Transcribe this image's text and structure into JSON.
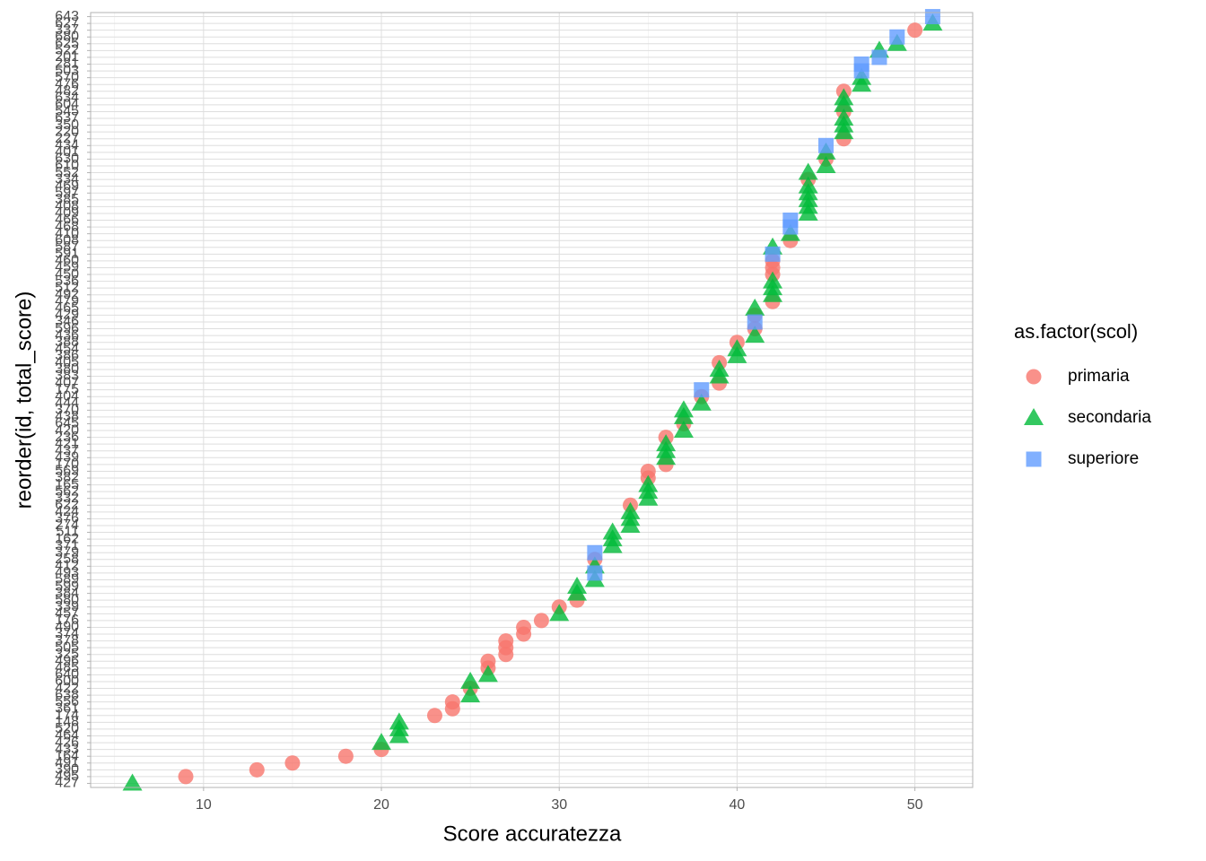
{
  "chart_data": {
    "type": "scatter",
    "x_label": "Score accuratezza",
    "y_label": "reorder(id, total_score)",
    "legend_title": "as.factor(scol)",
    "legend_position": "right",
    "grid": true,
    "xlim": [
      3.65,
      53.25
    ],
    "xticks": [
      10,
      20,
      30,
      40,
      50
    ],
    "categories": [
      "427",
      "495",
      "390",
      "491",
      "164",
      "433",
      "426",
      "464",
      "520",
      "148",
      "174",
      "361",
      "556",
      "638",
      "422",
      "600",
      "640",
      "485",
      "496",
      "325",
      "505",
      "378",
      "374",
      "490",
      "176",
      "457",
      "339",
      "580",
      "384",
      "599",
      "589",
      "493",
      "412",
      "258",
      "379",
      "371",
      "162",
      "511",
      "274",
      "376",
      "424",
      "622",
      "332",
      "562",
      "165",
      "382",
      "569",
      "170",
      "439",
      "437",
      "421",
      "236",
      "420",
      "645",
      "438",
      "370",
      "444",
      "404",
      "175",
      "407",
      "383",
      "380",
      "405",
      "386",
      "454",
      "388",
      "436",
      "596",
      "346",
      "429",
      "465",
      "479",
      "492",
      "512",
      "536",
      "450",
      "459",
      "460",
      "591",
      "587",
      "608",
      "410",
      "468",
      "466",
      "409",
      "408",
      "385",
      "597",
      "469",
      "334",
      "552",
      "610",
      "630",
      "401",
      "434",
      "227",
      "220",
      "350",
      "637",
      "545",
      "604",
      "634",
      "482",
      "476",
      "570",
      "503",
      "281",
      "201",
      "522",
      "625",
      "680",
      "337",
      "627",
      "643"
    ],
    "series": [
      {
        "name": "primaria",
        "color": "#F8766D",
        "shape": "circle",
        "values": [
          null,
          9,
          13,
          15,
          18,
          20,
          null,
          null,
          null,
          null,
          23,
          24,
          24,
          null,
          25,
          null,
          null,
          26,
          26,
          27,
          27,
          27,
          28,
          28,
          29,
          null,
          30,
          31,
          null,
          null,
          null,
          null,
          null,
          32,
          null,
          null,
          null,
          null,
          null,
          null,
          null,
          34,
          null,
          null,
          null,
          35,
          35,
          36,
          null,
          null,
          null,
          36,
          null,
          37,
          null,
          null,
          null,
          38,
          null,
          39,
          null,
          null,
          39,
          null,
          null,
          40,
          null,
          41,
          null,
          41,
          null,
          42,
          null,
          null,
          null,
          42,
          42,
          42,
          null,
          null,
          43,
          null,
          null,
          null,
          null,
          null,
          null,
          null,
          null,
          44,
          null,
          null,
          45,
          null,
          null,
          46,
          null,
          null,
          null,
          46,
          null,
          null,
          46,
          null,
          null,
          null,
          null,
          null,
          null,
          null,
          null,
          50,
          null,
          null
        ]
      },
      {
        "name": "secondaria",
        "color": "#00BA38",
        "shape": "triangle",
        "values": [
          6,
          null,
          null,
          null,
          null,
          null,
          20,
          21,
          21,
          21,
          null,
          null,
          null,
          25,
          null,
          25,
          26,
          null,
          null,
          null,
          null,
          null,
          null,
          null,
          null,
          30,
          null,
          null,
          31,
          31,
          32,
          null,
          32,
          null,
          null,
          33,
          33,
          33,
          34,
          34,
          34,
          null,
          35,
          35,
          35,
          null,
          null,
          null,
          36,
          36,
          36,
          null,
          37,
          null,
          37,
          37,
          38,
          null,
          null,
          null,
          39,
          39,
          null,
          40,
          40,
          null,
          41,
          null,
          null,
          null,
          41,
          null,
          42,
          42,
          42,
          null,
          null,
          null,
          null,
          42,
          null,
          43,
          null,
          null,
          44,
          44,
          44,
          44,
          44,
          null,
          44,
          45,
          null,
          45,
          null,
          null,
          46,
          46,
          46,
          null,
          46,
          46,
          null,
          47,
          47,
          null,
          null,
          null,
          48,
          49,
          null,
          null,
          51,
          null
        ]
      },
      {
        "name": "superiore",
        "color": "#619CFF",
        "shape": "square",
        "values": [
          null,
          null,
          null,
          null,
          null,
          null,
          null,
          null,
          null,
          null,
          null,
          null,
          null,
          null,
          null,
          null,
          null,
          null,
          null,
          null,
          null,
          null,
          null,
          null,
          null,
          null,
          null,
          null,
          null,
          null,
          null,
          32,
          null,
          null,
          32,
          null,
          null,
          null,
          null,
          null,
          null,
          null,
          null,
          null,
          null,
          null,
          null,
          null,
          null,
          null,
          null,
          null,
          null,
          null,
          null,
          null,
          null,
          null,
          38,
          null,
          null,
          null,
          null,
          null,
          null,
          null,
          null,
          null,
          41,
          null,
          null,
          null,
          null,
          null,
          null,
          null,
          null,
          null,
          42,
          null,
          null,
          null,
          43,
          43,
          null,
          null,
          null,
          null,
          null,
          null,
          null,
          null,
          null,
          null,
          45,
          null,
          null,
          null,
          null,
          null,
          null,
          null,
          null,
          null,
          null,
          47,
          47,
          48,
          null,
          null,
          49,
          null,
          null,
          51
        ]
      }
    ]
  }
}
